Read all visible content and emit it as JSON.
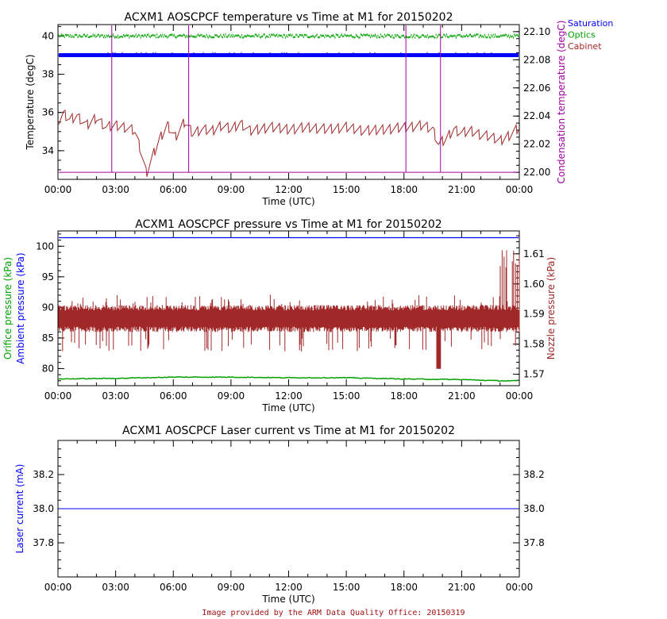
{
  "footer": "Image provided by the ARM Data Quality Office: 20150319",
  "colors": {
    "saturation": "#0000ff",
    "optics": "#00a000",
    "cabinet": "#a02828",
    "condensation": "#a000a0",
    "orifice": "#00a000",
    "ambient": "#0000ff",
    "nozzle": "#a02828",
    "laser": "#0000ff"
  },
  "chart_data": [
    {
      "type": "line",
      "title": "ACXM1 AOSCPCF temperature vs Time at M1 for 20150202",
      "xlabel": "Time (UTC)",
      "xticks": [
        "00:00",
        "03:00",
        "06:00",
        "09:00",
        "12:00",
        "15:00",
        "18:00",
        "21:00",
        "00:00"
      ],
      "xlim_hours": [
        0,
        24
      ],
      "ylabel_left": "Temperature (degC)",
      "ylim_left": [
        32.5,
        40.6
      ],
      "yticks_left": [
        "34",
        "36",
        "38",
        "40"
      ],
      "ylabel_right": "Condensation temperature (degC)",
      "ylim_right": [
        21.995,
        22.105
      ],
      "yticks_right": [
        "22.00",
        "22.02",
        "22.04",
        "22.06",
        "22.08",
        "22.10"
      ],
      "legend": [
        "Saturation",
        "Optics",
        "Cabinet"
      ],
      "legend_position": "top-right outside",
      "series": [
        {
          "name": "Saturation",
          "axis": "left",
          "constant": 39.0
        },
        {
          "name": "Optics",
          "axis": "left",
          "constant": 40.0
        },
        {
          "name": "Cabinet",
          "axis": "left",
          "x_hours": [
            0,
            0.3,
            0.6,
            1.0,
            1.5,
            2.0,
            2.5,
            3.0,
            3.5,
            4.0,
            4.3,
            4.6,
            4.9,
            5.3,
            5.7,
            6.1,
            6.6,
            7.0,
            7.5,
            8.0,
            8.5,
            9.0,
            9.5,
            10.0,
            11.0,
            12.0,
            13.0,
            14.0,
            15.0,
            16.0,
            17.0,
            18.0,
            19.0,
            19.5,
            19.8,
            20.2,
            20.6,
            21.0,
            21.5,
            22.0,
            22.5,
            23.0,
            23.5,
            24.0
          ],
          "values": [
            35.5,
            35.9,
            35.6,
            35.8,
            35.3,
            35.7,
            35.2,
            35.3,
            35.2,
            35.0,
            34.0,
            32.8,
            33.6,
            34.6,
            35.3,
            34.7,
            35.5,
            34.9,
            35.1,
            35.0,
            35.3,
            35.1,
            35.4,
            35.0,
            35.2,
            35.1,
            35.2,
            35.1,
            35.2,
            35.0,
            35.1,
            35.2,
            35.3,
            35.1,
            34.3,
            34.6,
            35.1,
            34.9,
            35.0,
            34.8,
            34.7,
            34.5,
            34.8,
            35.2
          ]
        },
        {
          "name": "Condensation temperature",
          "axis": "right",
          "constant": 22.0,
          "spike_hours": [
            2.8,
            6.8,
            18.1,
            19.9
          ],
          "spike_top": 22.105
        }
      ]
    },
    {
      "type": "line",
      "title": "ACXM1 AOSCPCF pressure vs Time at M1 for 20150202",
      "xlabel": "Time (UTC)",
      "xticks": [
        "00:00",
        "03:00",
        "06:00",
        "09:00",
        "12:00",
        "15:00",
        "18:00",
        "21:00",
        "00:00"
      ],
      "xlim_hours": [
        0,
        24
      ],
      "ylabel_left": [
        "Orifice pressure (kPa)",
        "Ambient pressure (kPa)"
      ],
      "ylim_left": [
        77.2,
        102.5
      ],
      "yticks_left": [
        "80",
        "85",
        "90",
        "95",
        "100"
      ],
      "ylabel_right": "Nozzle pressure (kPa)",
      "ylim_right": [
        1.5662,
        1.6176
      ],
      "yticks_right": [
        "1.57",
        "1.58",
        "1.59",
        "1.60",
        "1.61"
      ],
      "series": [
        {
          "name": "Ambient pressure",
          "axis": "left",
          "constant": 101.4
        },
        {
          "name": "Orifice pressure",
          "axis": "left",
          "x_hours": [
            0,
            3,
            6,
            9,
            12,
            15,
            18,
            21,
            23,
            24
          ],
          "values": [
            78.3,
            78.4,
            78.6,
            78.6,
            78.5,
            78.5,
            78.3,
            78.2,
            78.0,
            78.0
          ]
        },
        {
          "name": "Nozzle pressure",
          "axis": "right",
          "center": 1.5885,
          "band": 0.0045,
          "spike_max": 1.5965,
          "spike_min": 1.5775,
          "late_spike_max": 1.6125,
          "dip_hour": 19.8,
          "dip_min": 1.5718
        }
      ]
    },
    {
      "type": "line",
      "title": "ACXM1 AOSCPCF Laser current vs Time at M1 for 20150202",
      "xlabel": "Time (UTC)",
      "xticks": [
        "00:00",
        "03:00",
        "06:00",
        "09:00",
        "12:00",
        "15:00",
        "18:00",
        "21:00",
        "00:00"
      ],
      "xlim_hours": [
        0,
        24
      ],
      "ylabel_left": "Laser current (mA)",
      "ylim": [
        37.6,
        38.4
      ],
      "yticks": [
        "37.8",
        "38.0",
        "38.2"
      ],
      "series": [
        {
          "name": "Laser current",
          "axis": "left",
          "constant": 38.0
        }
      ]
    }
  ]
}
